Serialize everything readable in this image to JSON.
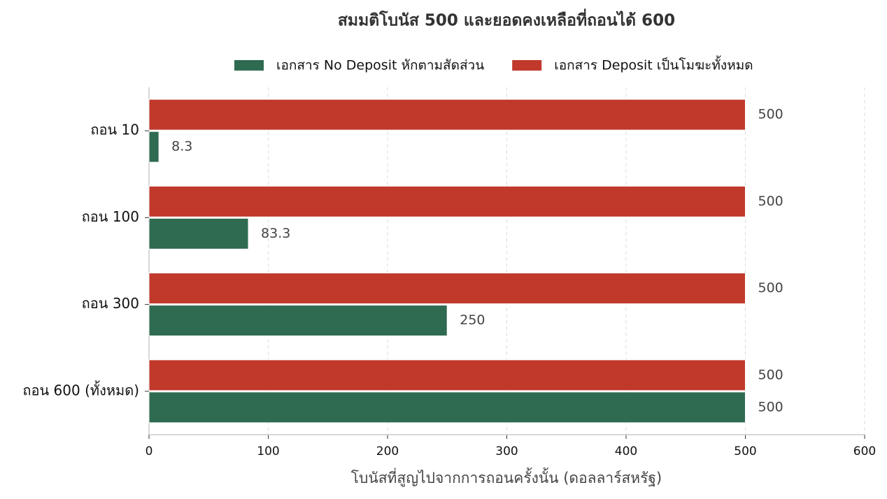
{
  "chart_data": {
    "type": "barh",
    "title": "สมมติโบนัส 500 และยอดคงเหลือที่ถอนได้ 600",
    "xlabel": "โบนัสที่สูญไปจากการถอนครั้งนั้น (ดอลลาร์สหรัฐ)",
    "categories": [
      "ถอน 10",
      "ถอน 100",
      "ถอน 300",
      "ถอน 600 (ทั้งหมด)"
    ],
    "series": [
      {
        "name": "เอกสาร No Deposit หักตามสัดส่วน",
        "color": "#2e6b50",
        "values": [
          8.3,
          83.3,
          250,
          500
        ]
      },
      {
        "name": "เอกสาร Deposit เป็นโมฆะทั้งหมด",
        "color": "#c0392b",
        "values": [
          500,
          500,
          500,
          500
        ]
      }
    ],
    "xlim": [
      0,
      600
    ],
    "xticks": [
      0,
      100,
      200,
      300,
      400,
      500,
      600
    ],
    "grid": true,
    "legend": "upper center"
  }
}
